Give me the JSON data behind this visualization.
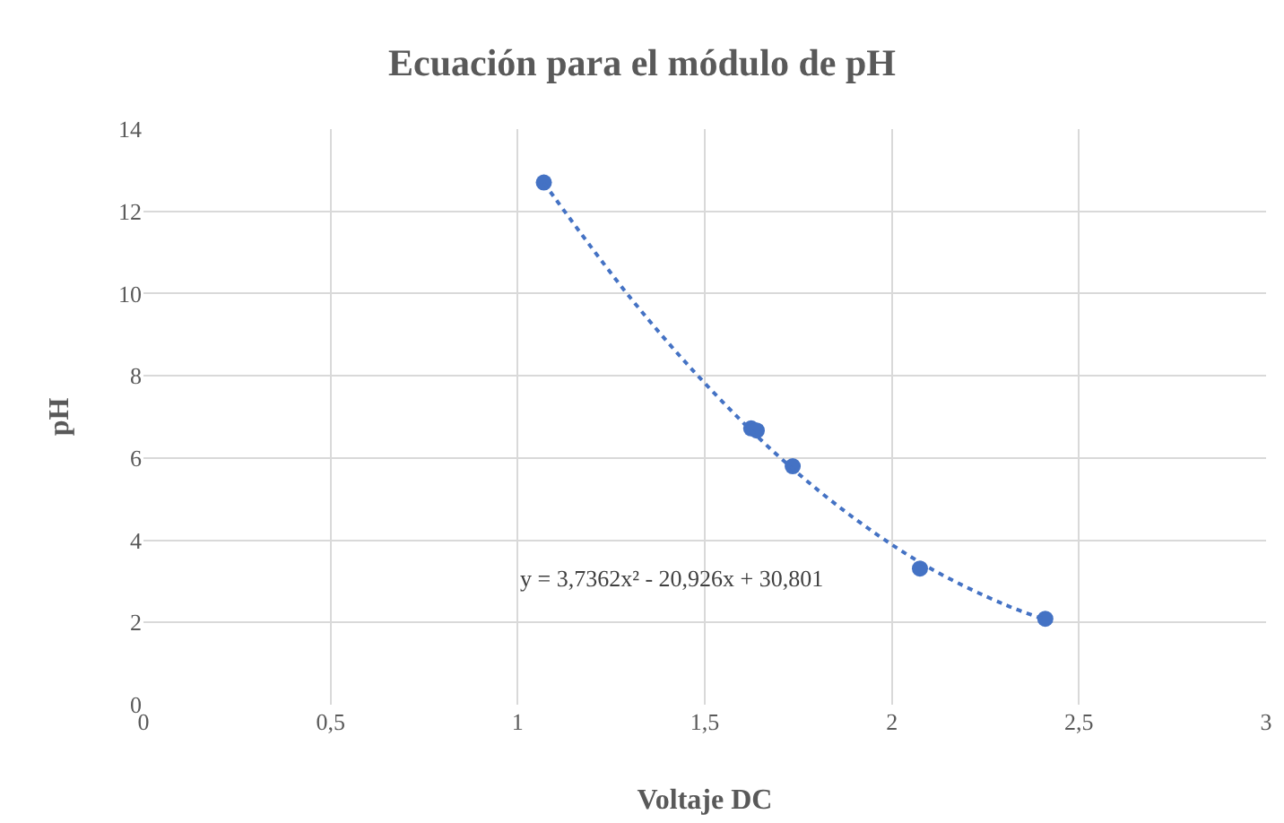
{
  "chart_data": {
    "type": "scatter",
    "title": "Ecuación para el módulo de pH",
    "xlabel": "Voltaje DC",
    "ylabel": "pH",
    "series": [
      {
        "type": "scatter",
        "color": "#4472c4",
        "marker": "circle",
        "x": [
          1.07,
          1.624,
          1.639,
          1.735,
          2.075,
          2.41
        ],
        "values": [
          12.7,
          6.72,
          6.67,
          5.8,
          3.31,
          2.09
        ]
      },
      {
        "type": "line",
        "color": "#4472c4",
        "line_style": "dotted",
        "marker": "none",
        "x": [
          1.07,
          1.3,
          1.5,
          1.7,
          1.9,
          2.1,
          2.3,
          2.41
        ],
        "values": [
          12.69,
          9.91,
          7.82,
          6.02,
          4.53,
          3.33,
          2.44,
          2.07
        ]
      }
    ],
    "xlim": [
      0,
      3
    ],
    "xticks": [
      0,
      {
        "value": 0.5,
        "label": "0,5"
      },
      1,
      {
        "value": 1.5,
        "label": "1,5"
      },
      2,
      {
        "value": 2.5,
        "label": "2,5"
      },
      3
    ],
    "ylim": [
      0,
      14
    ],
    "yticks": [
      0,
      2,
      4,
      6,
      8,
      10,
      12,
      14
    ],
    "grid": true,
    "annotations": [
      "y = 3,7362x² - 20,926x + 30,801"
    ]
  }
}
